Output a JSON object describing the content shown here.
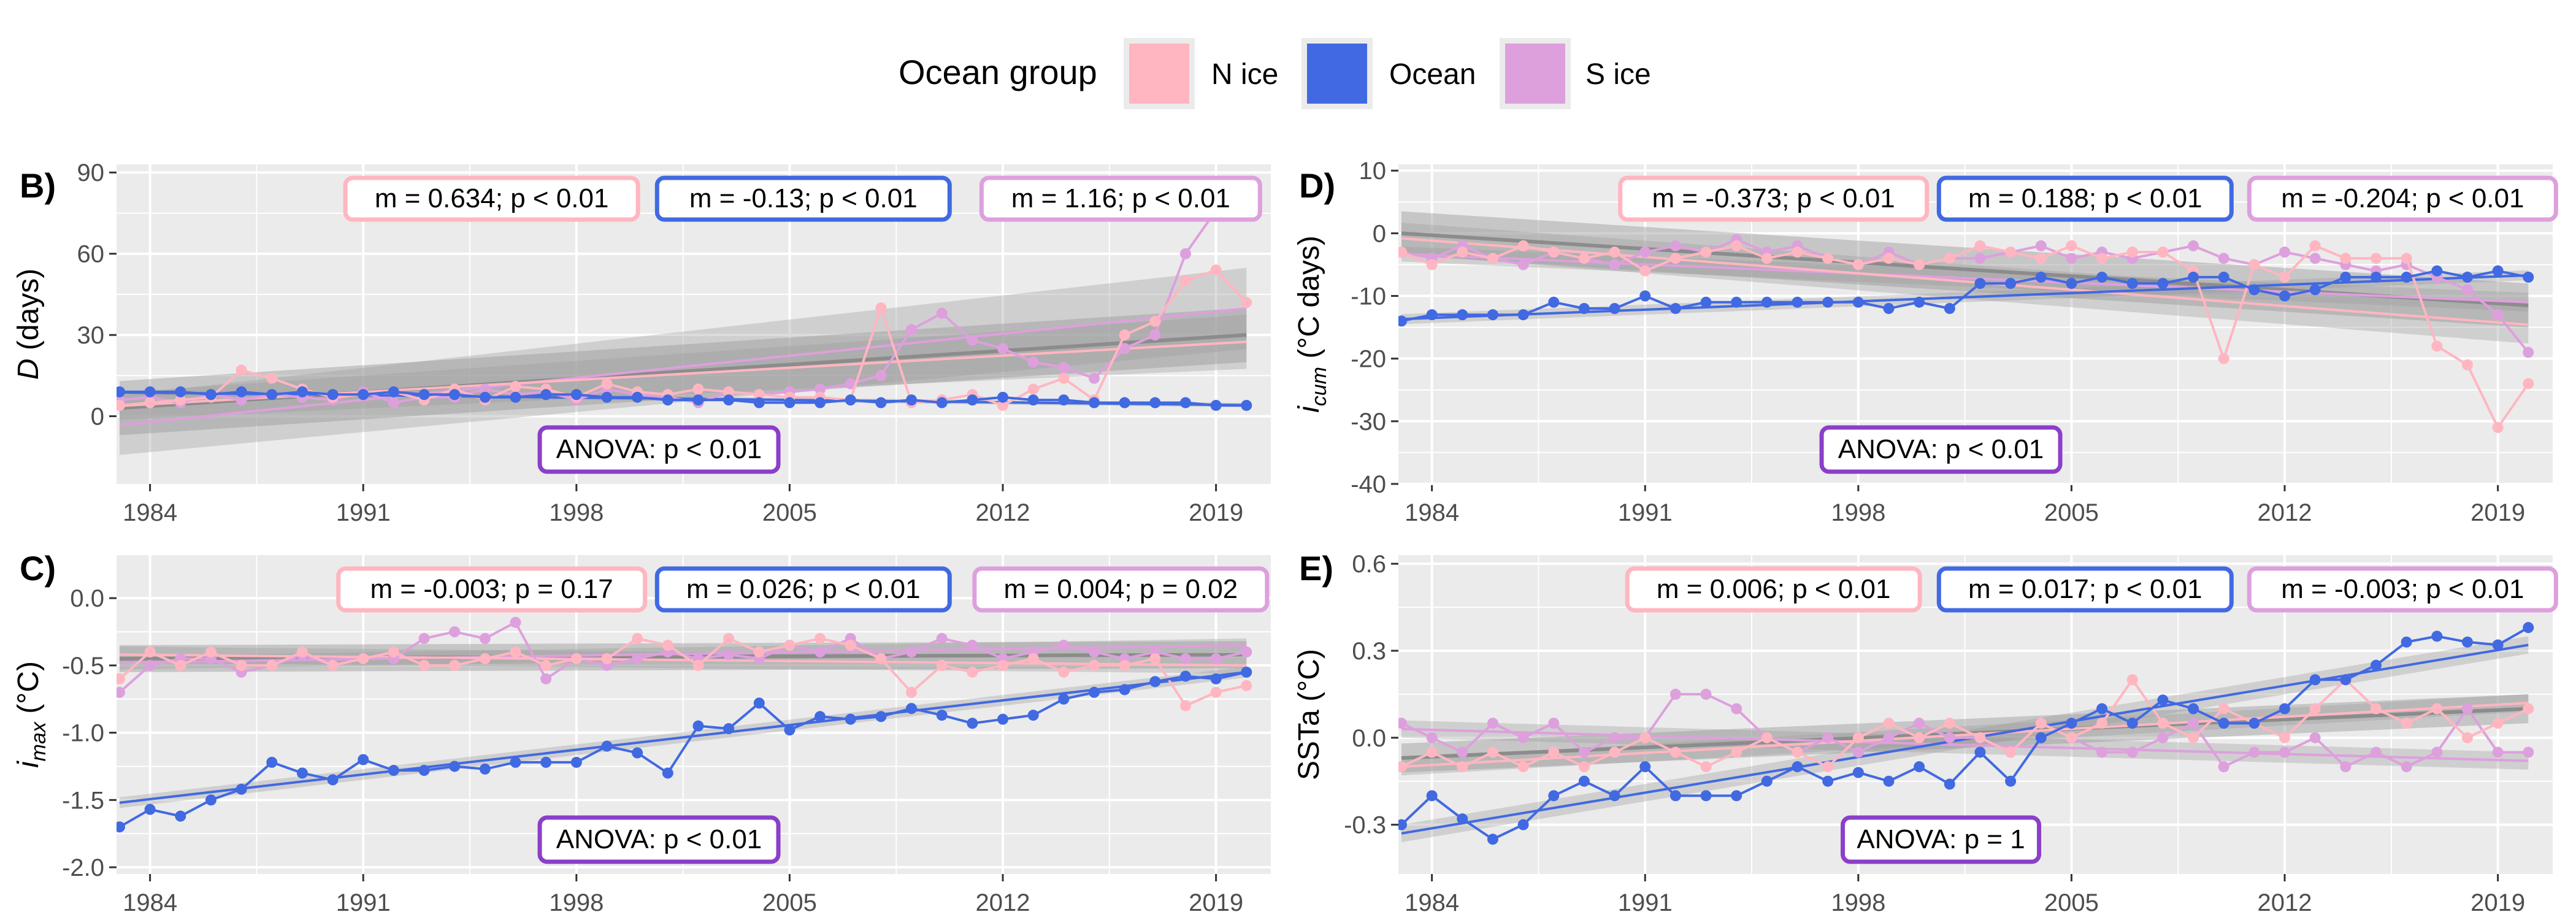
{
  "legend": {
    "title": "Ocean group",
    "items": [
      {
        "label": "N ice",
        "color": "#FFB6C1"
      },
      {
        "label": "Ocean",
        "color": "#4169E1"
      },
      {
        "label": "S ice",
        "color": "#DDA0DD"
      }
    ]
  },
  "anova_color": "#8B3FC9",
  "chart_data": [
    {
      "id": "B",
      "type": "line",
      "panel_label": "B)",
      "ylabel": "D (days)",
      "ylim": [
        -25,
        93
      ],
      "yticks": [
        0,
        30,
        60,
        90
      ],
      "xlim": [
        1982.9,
        2020.8
      ],
      "xticks": [
        1984,
        1991,
        1998,
        2005,
        2012,
        2019
      ],
      "grid": true,
      "annotations": [
        "m = 0.634; p < 0.01",
        "m = -0.13; p < 0.01",
        "m = 1.16; p < 0.01"
      ],
      "anova": "ANOVA: p < 0.01",
      "x": [
        1983,
        1984,
        1985,
        1986,
        1987,
        1988,
        1989,
        1990,
        1991,
        1992,
        1993,
        1994,
        1995,
        1996,
        1997,
        1998,
        1999,
        2000,
        2001,
        2002,
        2003,
        2004,
        2005,
        2006,
        2007,
        2008,
        2009,
        2010,
        2011,
        2012,
        2013,
        2014,
        2015,
        2016,
        2017,
        2018,
        2019,
        2020
      ],
      "series": [
        {
          "name": "N ice",
          "values": [
            4,
            5,
            6,
            7,
            17,
            14,
            10,
            7,
            8,
            9,
            6,
            10,
            6,
            11,
            10,
            7,
            12,
            9,
            8,
            10,
            9,
            8,
            7,
            7,
            6,
            40,
            5,
            6,
            8,
            4,
            10,
            14,
            6,
            30,
            35,
            50,
            54,
            42
          ],
          "fit": {
            "start": 3.8,
            "end": 27.5,
            "ci_start": 5,
            "ci_end": 10
          }
        },
        {
          "name": "Ocean",
          "values": [
            9,
            9,
            9,
            8,
            9,
            8,
            9,
            8,
            8,
            9,
            8,
            8,
            7,
            7,
            8,
            8,
            7,
            7,
            6,
            6,
            6,
            5,
            5,
            5,
            6,
            5,
            6,
            5,
            6,
            7,
            6,
            6,
            5,
            5,
            5,
            5,
            4,
            4
          ],
          "fit": {
            "start": 8.8,
            "end": 4.1,
            "ci_start": 0.8,
            "ci_end": 0.8
          }
        },
        {
          "name": "S ice",
          "values": [
            6,
            7,
            5,
            8,
            6,
            8,
            7,
            6,
            9,
            5,
            7,
            7,
            10,
            8,
            9,
            6,
            10,
            8,
            7,
            5,
            9,
            8,
            9,
            10,
            12,
            15,
            32,
            38,
            28,
            25,
            20,
            18,
            14,
            25,
            30,
            60,
            76,
            82
          ],
          "fit": {
            "start": -3.3,
            "end": 39.8,
            "ci_start": 11,
            "ci_end": 15
          }
        }
      ],
      "overall_fit": {
        "start": 3,
        "end": 30,
        "ci_start": 10,
        "ci_end": 10
      }
    },
    {
      "id": "D",
      "type": "line",
      "panel_label": "D)",
      "ylabel": "i_cum (°C days)",
      "ylim": [
        -40,
        11
      ],
      "yticks": [
        -40,
        -30,
        -20,
        -10,
        0,
        10
      ],
      "xlim": [
        1982.9,
        2020.8
      ],
      "xticks": [
        1984,
        1991,
        1998,
        2005,
        2012,
        2019
      ],
      "grid": true,
      "annotations": [
        "m = -0.373; p < 0.01",
        "m = 0.188; p < 0.01",
        "m = -0.204; p < 0.01"
      ],
      "anova": "ANOVA: p < 0.01",
      "x": [
        1983,
        1984,
        1985,
        1986,
        1987,
        1988,
        1989,
        1990,
        1991,
        1992,
        1993,
        1994,
        1995,
        1996,
        1997,
        1998,
        1999,
        2000,
        2001,
        2002,
        2003,
        2004,
        2005,
        2006,
        2007,
        2008,
        2009,
        2010,
        2011,
        2012,
        2013,
        2014,
        2015,
        2016,
        2017,
        2018,
        2019,
        2020
      ],
      "series": [
        {
          "name": "N ice",
          "values": [
            -3,
            -5,
            -3,
            -4,
            -2,
            -3,
            -4,
            -3,
            -6,
            -4,
            -3,
            -2,
            -4,
            -3,
            -4,
            -5,
            -4,
            -5,
            -4,
            -2,
            -3,
            -4,
            -2,
            -4,
            -3,
            -3,
            -6,
            -20,
            -5,
            -7,
            -2,
            -4,
            -4,
            -4,
            -18,
            -21,
            -31,
            -24
          ],
          "fit": {
            "start": -0.8,
            "end": -14.6,
            "ci_start": 2.5,
            "ci_end": 3
          }
        },
        {
          "name": "Ocean",
          "values": [
            -14,
            -13,
            -13,
            -13,
            -13,
            -11,
            -12,
            -12,
            -10,
            -12,
            -11,
            -11,
            -11,
            -11,
            -11,
            -11,
            -12,
            -11,
            -12,
            -8,
            -8,
            -7,
            -8,
            -7,
            -8,
            -8,
            -7,
            -7,
            -9,
            -10,
            -9,
            -7,
            -7,
            -7,
            -6,
            -7,
            -6,
            -7
          ],
          "fit": {
            "start": -13.7,
            "end": -6.7,
            "ci_start": 0.8,
            "ci_end": 0.8
          }
        },
        {
          "name": "S ice",
          "values": [
            -3,
            -4,
            -2,
            -4,
            -5,
            -3,
            -4,
            -5,
            -3,
            -2,
            -3,
            -1,
            -3,
            -2,
            -4,
            -5,
            -3,
            -5,
            -4,
            -4,
            -3,
            -2,
            -4,
            -3,
            -4,
            -3,
            -2,
            -4,
            -5,
            -3,
            -4,
            -5,
            -6,
            -5,
            -7,
            -9,
            -13,
            -19
          ],
          "fit": {
            "start": -3.3,
            "end": -11,
            "ci_start": 1.2,
            "ci_end": 1.5
          }
        }
      ],
      "overall_fit": {
        "start": 0,
        "end": -11.5,
        "ci_start": 3.5,
        "ci_end": 3.5
      }
    },
    {
      "id": "C",
      "type": "line",
      "panel_label": "C)",
      "ylabel": "i_max (°C)",
      "ylim": [
        -2.05,
        0.32
      ],
      "yticks": [
        -2.0,
        -1.5,
        -1.0,
        -0.5,
        0.0
      ],
      "xlim": [
        1982.9,
        2020.8
      ],
      "xticks": [
        1984,
        1991,
        1998,
        2005,
        2012,
        2019
      ],
      "grid": true,
      "annotations": [
        "m = -0.003; p = 0.17",
        "m = 0.026; p < 0.01",
        "m = 0.004; p = 0.02"
      ],
      "anova": "ANOVA: p < 0.01",
      "x": [
        1983,
        1984,
        1985,
        1986,
        1987,
        1988,
        1989,
        1990,
        1991,
        1992,
        1993,
        1994,
        1995,
        1996,
        1997,
        1998,
        1999,
        2000,
        2001,
        2002,
        2003,
        2004,
        2005,
        2006,
        2007,
        2008,
        2009,
        2010,
        2011,
        2012,
        2013,
        2014,
        2015,
        2016,
        2017,
        2018,
        2019,
        2020
      ],
      "series": [
        {
          "name": "N ice",
          "values": [
            -0.6,
            -0.4,
            -0.5,
            -0.4,
            -0.5,
            -0.5,
            -0.4,
            -0.5,
            -0.45,
            -0.4,
            -0.5,
            -0.5,
            -0.45,
            -0.4,
            -0.5,
            -0.45,
            -0.45,
            -0.3,
            -0.35,
            -0.5,
            -0.3,
            -0.4,
            -0.35,
            -0.3,
            -0.35,
            -0.45,
            -0.7,
            -0.5,
            -0.55,
            -0.5,
            -0.45,
            -0.55,
            -0.5,
            -0.5,
            -0.45,
            -0.8,
            -0.7,
            -0.65
          ],
          "fit": {
            "start": -0.42,
            "end": -0.5,
            "ci_start": 0.06,
            "ci_end": 0.06
          }
        },
        {
          "name": "Ocean",
          "values": [
            -1.7,
            -1.57,
            -1.62,
            -1.5,
            -1.42,
            -1.22,
            -1.3,
            -1.35,
            -1.2,
            -1.28,
            -1.28,
            -1.25,
            -1.27,
            -1.22,
            -1.22,
            -1.22,
            -1.1,
            -1.15,
            -1.3,
            -0.95,
            -0.97,
            -0.78,
            -0.98,
            -0.88,
            -0.9,
            -0.88,
            -0.82,
            -0.87,
            -0.93,
            -0.9,
            -0.87,
            -0.75,
            -0.7,
            -0.68,
            -0.62,
            -0.58,
            -0.6,
            -0.55
          ],
          "fit": {
            "start": -1.52,
            "end": -0.55,
            "ci_start": 0.04,
            "ci_end": 0.04
          }
        },
        {
          "name": "S ice",
          "values": [
            -0.7,
            -0.5,
            -0.45,
            -0.45,
            -0.55,
            -0.5,
            -0.42,
            -0.5,
            -0.45,
            -0.45,
            -0.3,
            -0.25,
            -0.3,
            -0.18,
            -0.6,
            -0.45,
            -0.5,
            -0.45,
            -0.4,
            -0.45,
            -0.42,
            -0.45,
            -0.35,
            -0.4,
            -0.3,
            -0.45,
            -0.4,
            -0.3,
            -0.35,
            -0.45,
            -0.4,
            -0.35,
            -0.4,
            -0.45,
            -0.4,
            -0.45,
            -0.45,
            -0.4
          ],
          "fit": {
            "start": -0.48,
            "end": -0.35,
            "ci_start": 0.05,
            "ci_end": 0.05
          }
        }
      ],
      "overall_fit": {
        "start": -0.45,
        "end": -0.42,
        "ci_start": 0.1,
        "ci_end": 0.1
      }
    },
    {
      "id": "E",
      "type": "line",
      "panel_label": "E)",
      "ylabel": "SSTa (°C)",
      "ylim": [
        -0.47,
        0.63
      ],
      "yticks": [
        -0.3,
        0.0,
        0.3,
        0.6
      ],
      "xlim": [
        1982.9,
        2020.8
      ],
      "xticks": [
        1984,
        1991,
        1998,
        2005,
        2012,
        2019
      ],
      "grid": true,
      "annotations": [
        "m = 0.006; p < 0.01",
        "m = 0.017; p < 0.01",
        "m = -0.003; p < 0.01"
      ],
      "anova": "ANOVA: p = 1",
      "x": [
        1983,
        1984,
        1985,
        1986,
        1987,
        1988,
        1989,
        1990,
        1991,
        1992,
        1993,
        1994,
        1995,
        1996,
        1997,
        1998,
        1999,
        2000,
        2001,
        2002,
        2003,
        2004,
        2005,
        2006,
        2007,
        2008,
        2009,
        2010,
        2011,
        2012,
        2013,
        2014,
        2015,
        2016,
        2017,
        2018,
        2019,
        2020
      ],
      "series": [
        {
          "name": "N ice",
          "values": [
            -0.1,
            -0.05,
            -0.1,
            -0.05,
            -0.1,
            -0.05,
            -0.1,
            -0.05,
            0.0,
            -0.05,
            -0.1,
            -0.05,
            0.0,
            -0.05,
            -0.1,
            0.0,
            0.05,
            0.0,
            0.05,
            0.0,
            -0.05,
            0.05,
            0.0,
            0.05,
            0.2,
            0.05,
            0.0,
            0.1,
            0.05,
            0.0,
            0.1,
            0.2,
            0.1,
            0.05,
            0.1,
            0.0,
            0.05,
            0.1
          ],
          "fit": {
            "start": -0.1,
            "end": 0.12,
            "ci_start": 0.03,
            "ci_end": 0.03
          }
        },
        {
          "name": "Ocean",
          "values": [
            -0.3,
            -0.2,
            -0.28,
            -0.35,
            -0.3,
            -0.2,
            -0.15,
            -0.2,
            -0.1,
            -0.2,
            -0.2,
            -0.2,
            -0.15,
            -0.1,
            -0.15,
            -0.12,
            -0.15,
            -0.1,
            -0.16,
            -0.05,
            -0.15,
            0.0,
            0.05,
            0.1,
            0.05,
            0.13,
            0.1,
            0.05,
            0.05,
            0.1,
            0.2,
            0.2,
            0.25,
            0.33,
            0.35,
            0.33,
            0.32,
            0.38
          ],
          "fit": {
            "start": -0.33,
            "end": 0.32,
            "ci_start": 0.03,
            "ci_end": 0.03
          }
        },
        {
          "name": "S ice",
          "values": [
            0.05,
            0.0,
            -0.05,
            0.05,
            0.0,
            0.05,
            -0.05,
            0.0,
            0.0,
            0.15,
            0.15,
            0.1,
            0.0,
            -0.05,
            0.0,
            -0.05,
            0.0,
            0.05,
            0.0,
            0.0,
            -0.05,
            0.05,
            0.0,
            -0.05,
            -0.05,
            0.0,
            0.05,
            -0.1,
            -0.05,
            -0.05,
            0.0,
            -0.1,
            -0.05,
            -0.1,
            -0.05,
            0.1,
            -0.05,
            -0.05
          ],
          "fit": {
            "start": 0.03,
            "end": -0.08,
            "ci_start": 0.03,
            "ci_end": 0.03
          }
        }
      ],
      "overall_fit": {
        "start": -0.07,
        "end": 0.1,
        "ci_start": 0.05,
        "ci_end": 0.05
      }
    }
  ]
}
